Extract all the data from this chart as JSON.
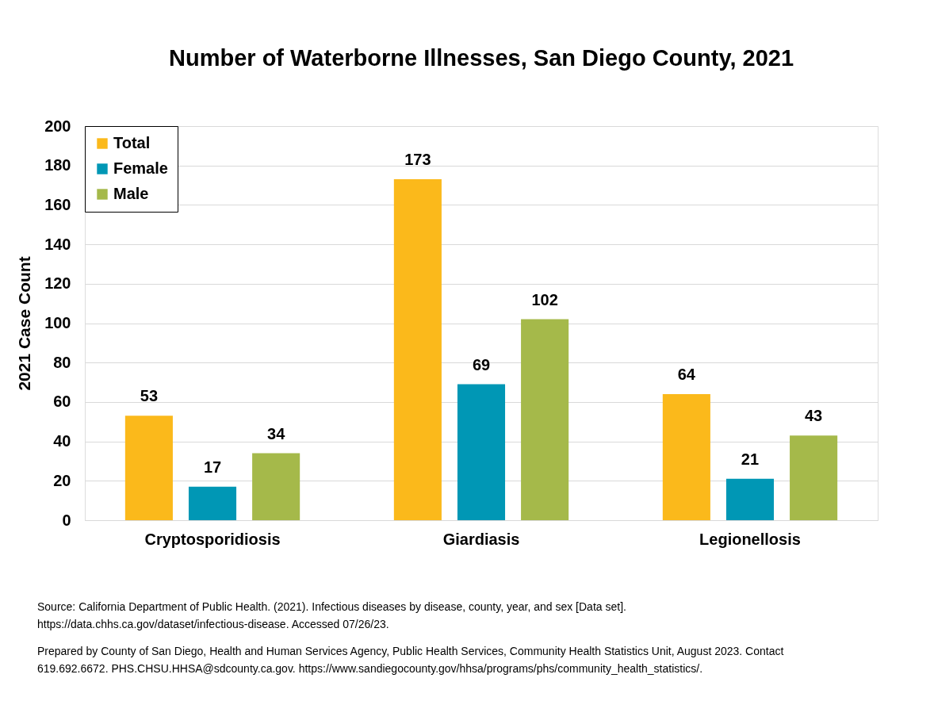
{
  "chart_data": {
    "type": "bar",
    "title": "Number of Waterborne Illnesses, San Diego County, 2021",
    "ylabel": "2021 Case Count",
    "categories": [
      "Cryptosporidiosis",
      "Giardiasis",
      "Legionellosis"
    ],
    "series": [
      {
        "name": "Total",
        "color": "#fbb91b",
        "values": [
          53,
          173,
          64
        ]
      },
      {
        "name": "Female",
        "color": "#0097b5",
        "values": [
          17,
          69,
          21
        ]
      },
      {
        "name": "Male",
        "color": "#a5b94a",
        "values": [
          34,
          102,
          43
        ]
      }
    ],
    "ylim": [
      0,
      200
    ],
    "yticks": [
      0,
      20,
      40,
      60,
      80,
      100,
      120,
      140,
      160,
      180,
      200
    ],
    "grid": "y",
    "legend": "top left",
    "data_labels": true,
    "annotations": [
      "Source: California Department of Public Health. (2021). Infectious diseases by disease, county, year, and sex [Data set].",
      "https://data.chhs.ca.gov/dataset/infectious-disease. Accessed 07/26/23.",
      "Prepared by County of San Diego, Health and Human Services Agency, Public Health Services, Community Health Statistics Unit, August 2023. Contact",
      "619.692.6672.  PHS.CHSU.HHSA@sdcounty.ca.gov. https://www.sandiegocounty.gov/hhsa/programs/phs/community_health_statistics/."
    ]
  }
}
